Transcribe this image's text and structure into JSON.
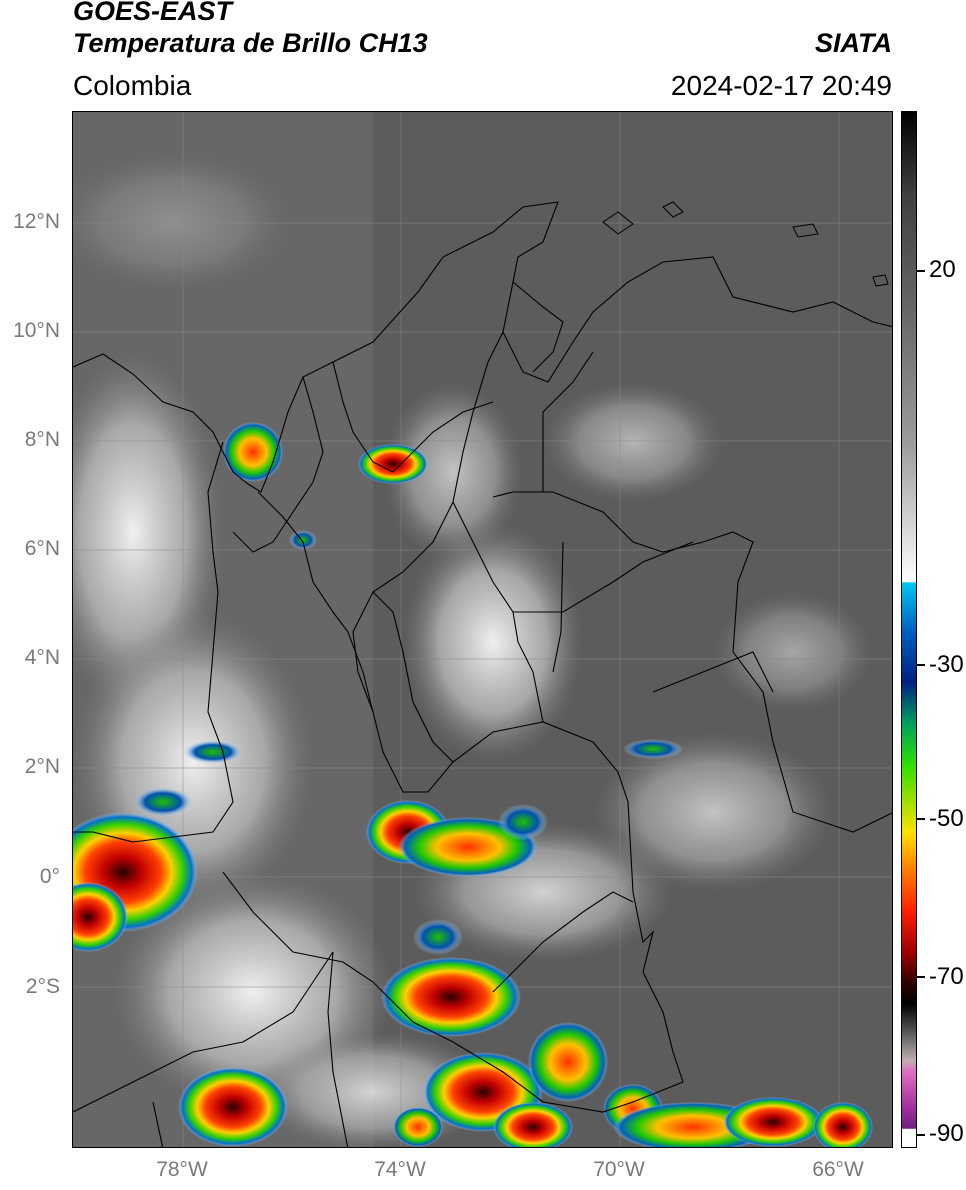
{
  "header": {
    "satellite": "GOES-EAST",
    "product": "Temperatura de Brillo CH13",
    "organization": "SIATA",
    "region": "Colombia",
    "timestamp": "2024-02-17 20:49"
  },
  "map": {
    "lat_labels": [
      "12°N",
      "10°N",
      "8°N",
      "6°N",
      "4°N",
      "2°N",
      "0°",
      "2°S"
    ],
    "lon_labels": [
      "78°W",
      "74°W",
      "70°W",
      "66°W"
    ],
    "lat_range": [
      -4.9,
      14.2
    ],
    "lon_range": [
      -80.0,
      -65.0
    ]
  },
  "colorbar": {
    "labels": [
      "20",
      "-30",
      "-50",
      "-70",
      "-90"
    ],
    "unit_values": [
      20,
      -30,
      -50,
      -70,
      -90
    ],
    "range": [
      -93,
      36
    ]
  },
  "colors": {
    "frame": "#000000",
    "tick_text": "#7a7a7a",
    "cloud_gray": "#5a5a5a"
  }
}
